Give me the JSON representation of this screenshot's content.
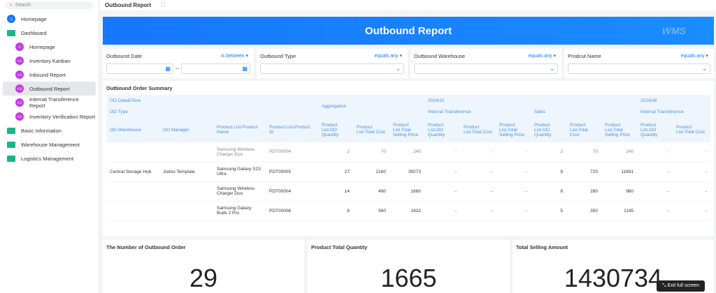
{
  "sidebar": {
    "search_placeholder": "Search",
    "items": [
      {
        "label": "Homepage",
        "icon": "home-icon",
        "level": 0,
        "color": "#1677ff"
      },
      {
        "label": "Dashboard",
        "icon": "folder-icon",
        "level": 0
      },
      {
        "label": "Homepage",
        "icon": "home-icon",
        "level": 1,
        "color": "#c03ee0"
      },
      {
        "label": "Inventory Kanban",
        "icon": "report-icon",
        "level": 1,
        "color": "#c03ee0"
      },
      {
        "label": "Inbound Report",
        "icon": "report-icon",
        "level": 1,
        "color": "#c03ee0"
      },
      {
        "label": "Outbound Report",
        "icon": "report-icon",
        "level": 1,
        "color": "#c03ee0",
        "selected": true
      },
      {
        "label": "Internal Transference Report",
        "icon": "report-icon",
        "level": 1,
        "color": "#c03ee0"
      },
      {
        "label": "Inventory Verification Report",
        "icon": "report-icon",
        "level": 1,
        "color": "#c03ee0"
      },
      {
        "label": "Basic Information",
        "icon": "folder-icon",
        "level": 0
      },
      {
        "label": "Warehouse Management",
        "icon": "folder-icon",
        "level": 0
      },
      {
        "label": "Logistics Management",
        "icon": "folder-icon",
        "level": 0
      }
    ]
  },
  "topbar": {
    "title": "Outbound Report"
  },
  "banner": {
    "title": "Outbound Report",
    "watermark": "WMS"
  },
  "filters": [
    {
      "label": "Outbound Date",
      "op": "is between",
      "sep": "~"
    },
    {
      "label": "Outbound Type",
      "op": "equals any"
    },
    {
      "label": "Outbound Warehouse",
      "op": "equals any"
    },
    {
      "label": "Prodcut Name",
      "op": "equals any"
    }
  ],
  "summary": {
    "title": "Outbound Order Summary",
    "row_headers": [
      "OO Data&Time",
      "OO Type"
    ],
    "aggregation": "Aggregation",
    "groups": [
      {
        "date": "2024/10",
        "types": [
          "Internal Transference",
          "Sales"
        ]
      },
      {
        "date": "2024/08",
        "types": [
          "Internal Transference"
        ]
      }
    ],
    "columns": [
      "OO Warehouse",
      "OO Manager",
      "Product List.Product Name",
      "Product List.Product ID",
      "Product List.OO Quantity",
      "Product List.Total Cost",
      "Product List.Total Selling Price",
      "Product List.OO Quantity",
      "Product List.Total Cost",
      "Product List.Total Selling Price",
      "Product List.OO Quantity",
      "Product List.Total Cost",
      "Product List.Total Selling Price",
      "Product List.OO Quantity",
      "Product List.Total Cost"
    ],
    "rows": [
      [
        "",
        "",
        "Samsung Wireless Charger Duo",
        "PDT00004",
        "2",
        "70",
        "240",
        "-",
        "-",
        "-",
        "2",
        "70",
        "240",
        "-",
        "-"
      ],
      [
        "Central Storage Hub",
        "Jodoo Template",
        "Samsung Galaxy S23 Ultra",
        "PDT00005",
        "27",
        "2160",
        "35073",
        "-",
        "-",
        "-",
        "9",
        "720",
        "11691",
        "-",
        "-"
      ],
      [
        "",
        "",
        "Samsung Wireless Charger Duo",
        "PDT00004",
        "14",
        "490",
        "1680",
        "-",
        "-",
        "-",
        "8",
        "280",
        "960",
        "-",
        "-"
      ],
      [
        "",
        "",
        "Samsung Galaxy Buds 2 Pro",
        "PDT00006",
        "8",
        "560",
        "1832",
        "-",
        "-",
        "-",
        "5",
        "350",
        "1145",
        "-",
        "-"
      ]
    ]
  },
  "stats": [
    {
      "title": "The Number of Outbound Order",
      "value": "29"
    },
    {
      "title": "Product Total Quantity",
      "value": "1665"
    },
    {
      "title": "Total Selling Amount",
      "value": "1430734"
    }
  ],
  "exit_fullscreen": "Exit full screen"
}
